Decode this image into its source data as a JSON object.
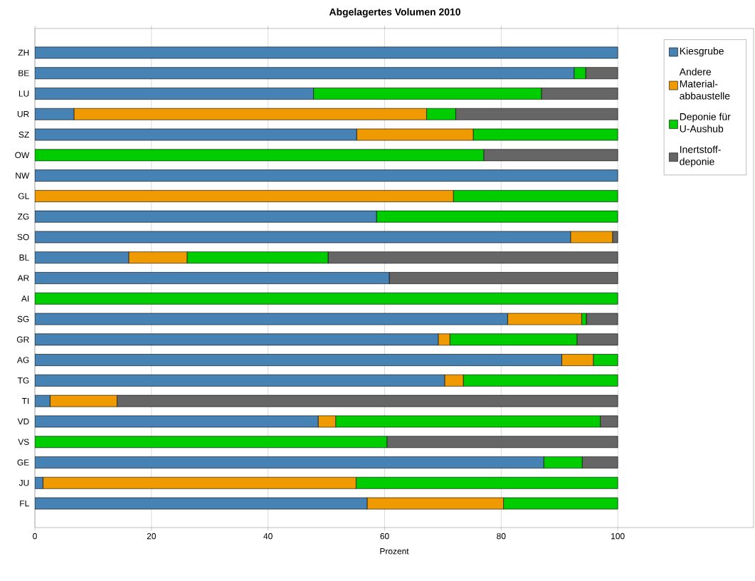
{
  "chart_data": {
    "type": "bar",
    "orientation": "horizontal",
    "stacked": true,
    "title": "Abgelagertes Volumen 2010",
    "xlabel": "Prozent",
    "categories": [
      "ZH",
      "BE",
      "LU",
      "UR",
      "SZ",
      "OW",
      "NW",
      "GL",
      "ZG",
      "SO",
      "BL",
      "AR",
      "AI",
      "SG",
      "GR",
      "AG",
      "TG",
      "TI",
      "VD",
      "VS",
      "GE",
      "JU",
      "FL"
    ],
    "series": [
      {
        "name": "Kiesgrube",
        "color": "#4682b4",
        "values": [
          100,
          92.5,
          47.8,
          6.7,
          55.2,
          0,
          100,
          0,
          58.6,
          91.9,
          16.1,
          60.8,
          0,
          81.1,
          69.2,
          90.4,
          70.3,
          2.6,
          48.6,
          0,
          87.3,
          1.4,
          57.0
        ]
      },
      {
        "name": "Andere Material-abbaustelle",
        "color": "#ee9a00",
        "values": [
          0,
          0,
          0,
          60.5,
          20.0,
          0,
          0,
          71.8,
          0,
          7.2,
          10.0,
          0,
          0,
          12.7,
          2.0,
          5.4,
          3.2,
          11.5,
          3.0,
          0,
          0,
          53.7,
          23.4
        ]
      },
      {
        "name": "Deponie für U-Aushub",
        "color": "#00cd00",
        "values": [
          0,
          2.0,
          39.1,
          5.0,
          24.8,
          77.0,
          0,
          28.2,
          41.4,
          0,
          24.2,
          0,
          100,
          0.8,
          21.8,
          4.2,
          26.5,
          0,
          45.4,
          60.4,
          6.6,
          44.9,
          19.6
        ]
      },
      {
        "name": "Inertstoff-deponie",
        "color": "#666666",
        "values": [
          0,
          5.5,
          13.1,
          27.8,
          0,
          23.0,
          0,
          0,
          0,
          0.9,
          49.7,
          39.2,
          0,
          5.4,
          7.0,
          0,
          0,
          85.9,
          3.0,
          39.6,
          6.1,
          0,
          0
        ]
      }
    ],
    "xlim": [
      0,
      123.3
    ],
    "xticks": [
      0,
      20,
      40,
      60,
      80,
      100
    ],
    "grid": "x",
    "legend": "top right"
  }
}
